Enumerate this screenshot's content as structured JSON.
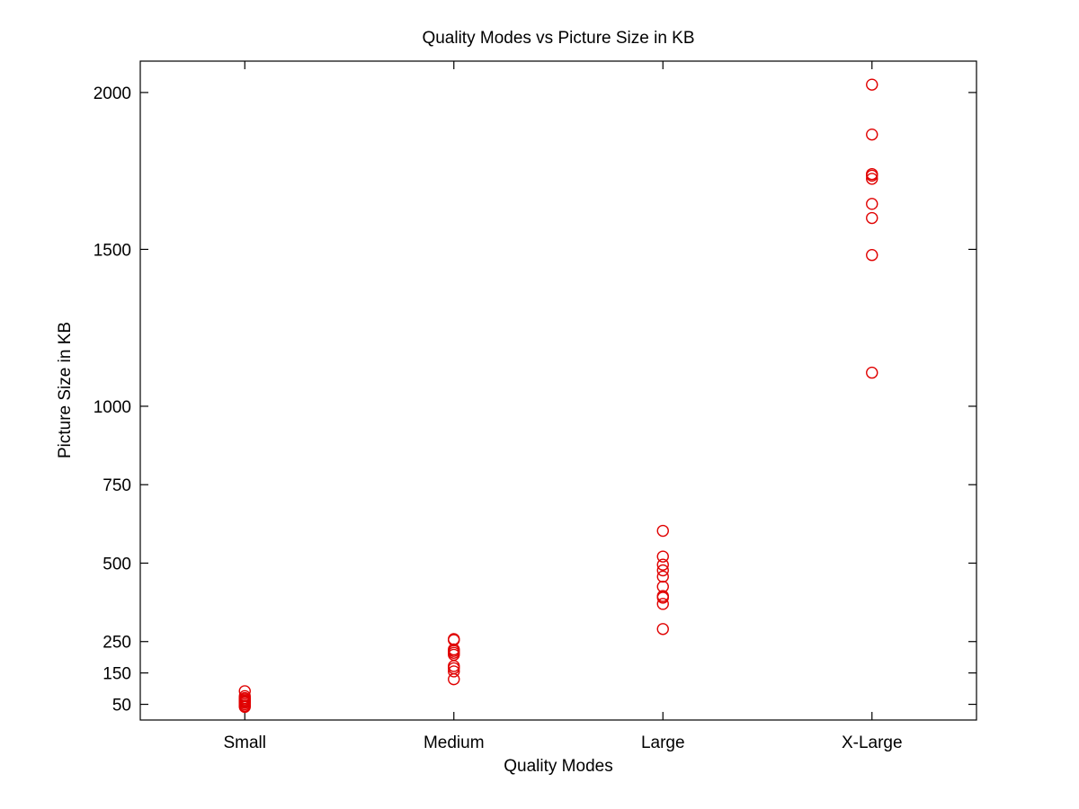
{
  "chart_data": {
    "type": "scatter",
    "title": "Quality Modes vs Picture Size in KB",
    "xlabel": "Quality Modes",
    "ylabel": "Picture Size in KB",
    "categories": [
      "Small",
      "Medium",
      "Large",
      "X-Large"
    ],
    "yticks": [
      50,
      150,
      250,
      500,
      750,
      1000,
      1500,
      2000
    ],
    "ylim": [
      0,
      2100
    ],
    "grid": false,
    "marker": "open-circle",
    "colors": {
      "marker": "#e00000",
      "axis": "#000000"
    },
    "series": [
      {
        "category": "Small",
        "values": [
          92,
          76,
          70,
          66,
          62,
          58,
          55,
          50,
          45,
          42
        ]
      },
      {
        "category": "Medium",
        "values": [
          258,
          255,
          225,
          220,
          214,
          208,
          172,
          165,
          155,
          130
        ]
      },
      {
        "category": "Large",
        "values": [
          603,
          521,
          495,
          477,
          457,
          425,
          395,
          390,
          370,
          290
        ]
      },
      {
        "category": "X-Large",
        "values": [
          2025,
          1866,
          1740,
          1735,
          1725,
          1645,
          1600,
          1482,
          1107
        ]
      }
    ]
  }
}
